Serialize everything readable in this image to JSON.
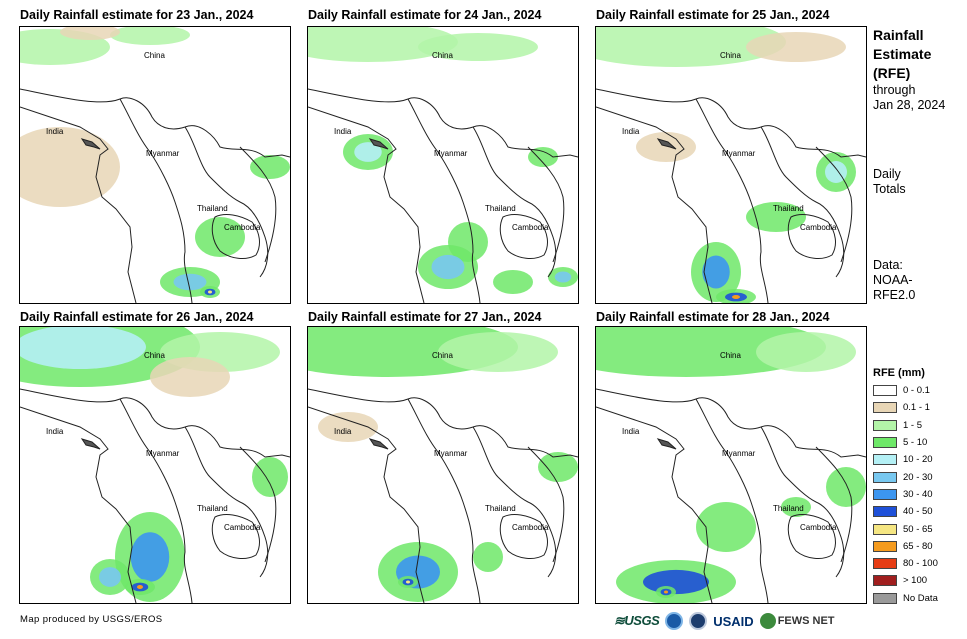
{
  "panels": [
    {
      "title": "Daily Rainfall estimate for 23 Jan., 2024",
      "labels": {
        "china": "China",
        "india": "India",
        "myanmar": "Myanmar",
        "thailand": "Thailand",
        "cambodia": "Cambodia"
      }
    },
    {
      "title": "Daily Rainfall estimate for 24 Jan., 2024",
      "labels": {
        "china": "China",
        "india": "India",
        "myanmar": "Myanmar",
        "thailand": "Thailand",
        "cambodia": "Cambodia"
      }
    },
    {
      "title": "Daily Rainfall estimate for 25 Jan., 2024",
      "labels": {
        "china": "China",
        "india": "India",
        "myanmar": "Myanmar",
        "thailand": "Thailand",
        "cambodia": "Cambodia"
      }
    },
    {
      "title": "Daily Rainfall estimate for 26 Jan., 2024",
      "labels": {
        "china": "China",
        "india": "India",
        "myanmar": "Myanmar",
        "thailand": "Thailand",
        "cambodia": "Cambodia"
      }
    },
    {
      "title": "Daily Rainfall estimate for 27 Jan., 2024",
      "labels": {
        "china": "China",
        "india": "India",
        "myanmar": "Myanmar",
        "thailand": "Thailand",
        "cambodia": "Cambodia"
      }
    },
    {
      "title": "Daily Rainfall estimate for 28 Jan., 2024",
      "labels": {
        "china": "China",
        "india": "India",
        "myanmar": "Myanmar",
        "thailand": "Thailand",
        "cambodia": "Cambodia"
      }
    }
  ],
  "side": {
    "title_1": "Rainfall",
    "title_2": "Estimate",
    "title_3": "(RFE)",
    "through": "through",
    "date": "Jan 28, 2024",
    "daily": "Daily",
    "totals": "Totals",
    "data_label": "Data:",
    "source_1": "NOAA-",
    "source_2": "RFE2.0"
  },
  "legend": {
    "title": "RFE (mm)",
    "items": [
      {
        "label": "0 - 0.1",
        "color": "#ffffff"
      },
      {
        "label": "0.1 - 1",
        "color": "#e8d6b6"
      },
      {
        "label": "1 - 5",
        "color": "#b3f5a8"
      },
      {
        "label": "5 - 10",
        "color": "#6ee868"
      },
      {
        "label": "10 - 20",
        "color": "#b4f0f5"
      },
      {
        "label": "20 - 30",
        "color": "#78c8f0"
      },
      {
        "label": "30 - 40",
        "color": "#3c96f0"
      },
      {
        "label": "40 - 50",
        "color": "#1e50d8"
      },
      {
        "label": "50 - 65",
        "color": "#f5e682"
      },
      {
        "label": "65 - 80",
        "color": "#f59b1e"
      },
      {
        "label": "80 - 100",
        "color": "#e63c14"
      },
      {
        "label": "> 100",
        "color": "#a01e1e"
      },
      {
        "label": "No Data",
        "color": "#9a9a9a"
      }
    ]
  },
  "footer": {
    "credit": "Map produced by USGS/EROS",
    "logo_usgs": "≋USGS",
    "logo_usaid": "USAID",
    "logo_fews": "FEWS NET"
  }
}
